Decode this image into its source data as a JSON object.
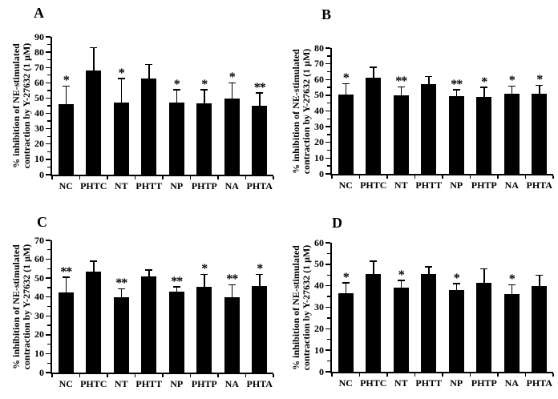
{
  "figure": {
    "background": "#ffffff",
    "text_color": "#000000"
  },
  "chart_data": [
    {
      "type": "bar",
      "panel_label": "A",
      "ylabel_line1": "% inhibition of NE-stimulated",
      "ylabel_line2": "contraction by Y-27632 (1 μM)",
      "categories": [
        "NC",
        "PHTC",
        "NT",
        "PHTT",
        "NP",
        "PHTP",
        "NA",
        "PHTA"
      ],
      "values": [
        46,
        68,
        47,
        63,
        47,
        46.5,
        49.5,
        45
      ],
      "errors_up": [
        12,
        15,
        16,
        9,
        8.5,
        9,
        10.5,
        8.5
      ],
      "significance": [
        "*",
        "",
        "*",
        "",
        "*",
        "*",
        "*",
        "**"
      ],
      "ylim": [
        0,
        90
      ],
      "ytick_step": 10,
      "y_minor_step": 5,
      "bar_color": "#000000",
      "grid": false,
      "legend": null
    },
    {
      "type": "bar",
      "panel_label": "B",
      "ylabel_line1": "% inhibition of NE-stimulated",
      "ylabel_line2": "contraction by Y-27632 (1 μM)",
      "categories": [
        "NC",
        "PHTC",
        "NT",
        "PHTT",
        "NP",
        "PHTP",
        "NA",
        "PHTA"
      ],
      "values": [
        50.5,
        61,
        50,
        57,
        49.5,
        49,
        51,
        51
      ],
      "errors_up": [
        7,
        7,
        5.5,
        5,
        4,
        6,
        5,
        5.5
      ],
      "significance": [
        "*",
        "",
        "**",
        "",
        "**",
        "*",
        "*",
        "*"
      ],
      "ylim": [
        0,
        80
      ],
      "ytick_step": 10,
      "y_minor_step": 5,
      "bar_color": "#000000",
      "grid": false,
      "legend": null
    },
    {
      "type": "bar",
      "panel_label": "C",
      "ylabel_line1": "% inhibition of NE-stimulated",
      "ylabel_line2": "contraction by Y-27632 (1 μM)",
      "categories": [
        "NC",
        "PHTC",
        "NT",
        "PHTT",
        "NP",
        "PHTP",
        "NA",
        "PHTA"
      ],
      "values": [
        42.5,
        53.5,
        40,
        51,
        43,
        45.5,
        40,
        46
      ],
      "errors_up": [
        8,
        5.5,
        4.5,
        3.5,
        2.5,
        6.5,
        6.5,
        6
      ],
      "significance": [
        "**",
        "",
        "**",
        "",
        "**",
        "*",
        "**",
        "*"
      ],
      "ylim": [
        0,
        70
      ],
      "ytick_step": 10,
      "y_minor_step": 5,
      "bar_color": "#000000",
      "grid": false,
      "legend": null
    },
    {
      "type": "bar",
      "panel_label": "D",
      "ylabel_line1": "% inhibition of NE-stimulated",
      "ylabel_line2": "contraction by Y-27632 (1 μM)",
      "categories": [
        "NC",
        "PHTC",
        "NT",
        "PHTT",
        "NP",
        "PHTP",
        "NA",
        "PHTA"
      ],
      "values": [
        36.5,
        45.5,
        39,
        45.5,
        38,
        41.5,
        36,
        40
      ],
      "errors_up": [
        5,
        6,
        3.5,
        3.5,
        3,
        6.5,
        4.5,
        5
      ],
      "significance": [
        "*",
        "",
        "*",
        "",
        "*",
        "",
        "*",
        ""
      ],
      "ylim": [
        0,
        60
      ],
      "ytick_step": 10,
      "y_minor_step": 5,
      "bar_color": "#000000",
      "grid": false,
      "legend": null
    }
  ]
}
